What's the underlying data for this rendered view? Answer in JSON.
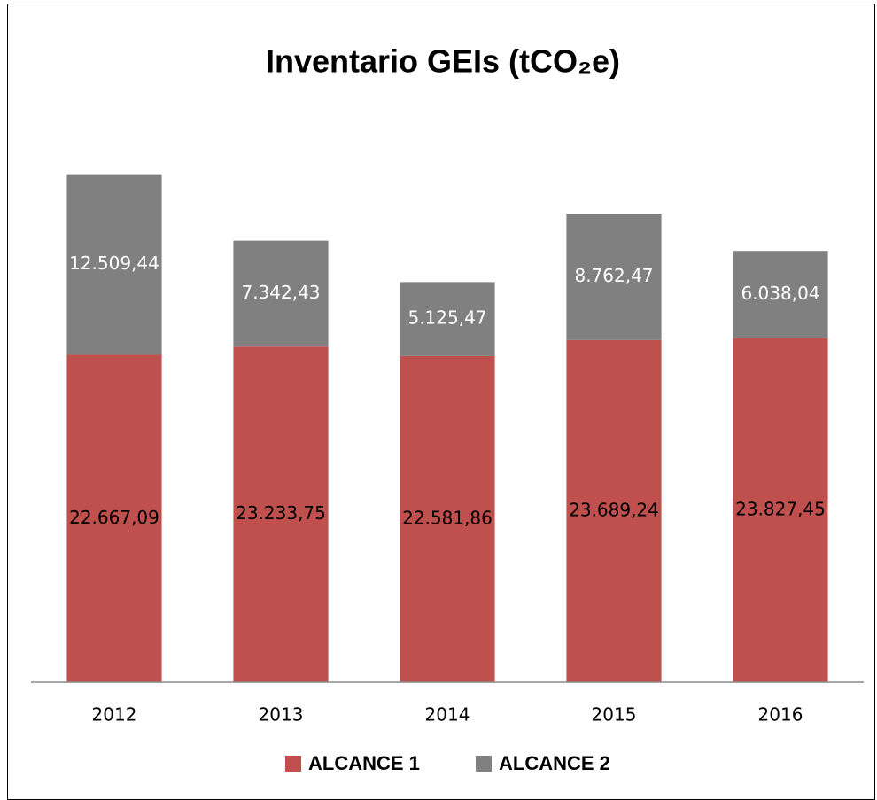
{
  "chart_data": {
    "type": "stacked_bar",
    "title": "Inventario GEIs (tCO₂e)",
    "categories": [
      "2012",
      "2013",
      "2014",
      "2015",
      "2016"
    ],
    "series": [
      {
        "name": "ALCANCE 1",
        "color": "#c0504d",
        "values": [
          22667.09,
          23233.75,
          22581.86,
          23689.24,
          23827.45
        ],
        "value_labels": [
          "22.667,09",
          "23.233,75",
          "22.581,86",
          "23.689,24",
          "23.827,45"
        ]
      },
      {
        "name": "ALCANCE 2",
        "color": "#808080",
        "values": [
          12509.44,
          7342.43,
          5125.47,
          8762.47,
          6038.04
        ],
        "value_labels": [
          "12.509,44",
          "7.342,43",
          "5.125,47",
          "8.762,47",
          "6.038,04"
        ]
      }
    ],
    "ylim": [
      0,
      40000
    ],
    "legend": "bottom"
  }
}
